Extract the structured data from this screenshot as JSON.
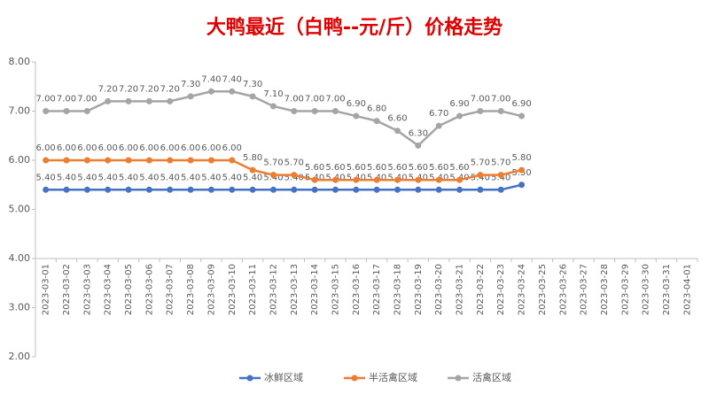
{
  "chart_data": {
    "type": "line",
    "title": "大鸭最近（白鸭--元/斤）价格走势",
    "categories": [
      "2023-03-01",
      "2023-03-02",
      "2023-03-03",
      "2023-03-04",
      "2023-03-05",
      "2023-03-06",
      "2023-03-07",
      "2023-03-08",
      "2023-03-09",
      "2023-03-10",
      "2023-03-11",
      "2023-03-12",
      "2023-03-13",
      "2023-03-14",
      "2023-03-15",
      "2023-03-16",
      "2023-03-17",
      "2023-03-18",
      "2023-03-19",
      "2023-03-20",
      "2023-03-21",
      "2023-03-22",
      "2023-03-23",
      "2023-03-24",
      "2023-03-25",
      "2023-03-26",
      "2023-03-27",
      "2023-03-28",
      "2023-03-29",
      "2023-03-30",
      "2023-03-31",
      "2023-04-01"
    ],
    "series": [
      {
        "name": "冰鲜区域",
        "color": "#4472c4",
        "values": [
          5.4,
          5.4,
          5.4,
          5.4,
          5.4,
          5.4,
          5.4,
          5.4,
          5.4,
          5.4,
          5.4,
          5.4,
          5.4,
          5.4,
          5.4,
          5.4,
          5.4,
          5.4,
          5.4,
          5.4,
          5.4,
          5.4,
          5.4,
          5.5,
          null,
          null,
          null,
          null,
          null,
          null,
          null,
          null
        ],
        "value_labels": [
          "5.40",
          "5.40",
          "5.40",
          "5.40",
          "5.40",
          "5.40",
          "5.40",
          "5.40",
          "5.40",
          "5.40",
          "5.40",
          "5.40",
          "5.40",
          "5.40",
          "5.40",
          "5.40",
          "5.40",
          "5.40",
          "5.40",
          "5.40",
          "5.40",
          "5.40",
          "5.40",
          "5.50",
          null,
          null,
          null,
          null,
          null,
          null,
          null,
          null
        ]
      },
      {
        "name": "半活禽区域",
        "color": "#ed7d31",
        "values": [
          6,
          6,
          6,
          6,
          6,
          6,
          6,
          6,
          6,
          6,
          5.8,
          5.7,
          5.7,
          5.6,
          5.6,
          5.6,
          5.6,
          5.6,
          5.6,
          5.6,
          5.6,
          5.7,
          5.7,
          5.8,
          null,
          null,
          null,
          null,
          null,
          null,
          null,
          null
        ],
        "value_labels": [
          "6.00",
          "6.00",
          "6.00",
          "6.00",
          "6.00",
          "6.00",
          "6.00",
          "6.00",
          "6.00",
          "6.00",
          "5.80",
          "5.70",
          "5.70",
          "5.60",
          "5.60",
          "5.60",
          "5.60",
          "5.60",
          "5.60",
          "5.60",
          "5.60",
          "5.70",
          "5.70",
          "5.80",
          null,
          null,
          null,
          null,
          null,
          null,
          null,
          null
        ]
      },
      {
        "name": "活禽区域",
        "color": "#a5a5a5",
        "values": [
          7,
          7,
          7,
          7.2,
          7.2,
          7.2,
          7.2,
          7.3,
          7.4,
          7.4,
          7.3,
          7.1,
          7,
          7,
          7,
          6.9,
          6.8,
          6.6,
          6.3,
          6.7,
          6.9,
          7,
          7,
          6.9,
          null,
          null,
          null,
          null,
          null,
          null,
          null,
          null
        ],
        "value_labels": [
          "7.00",
          "7.00",
          "7.00",
          "7.20",
          "7.20",
          "7.20",
          "7.20",
          "7.30",
          "7.40",
          "7.40",
          "7.30",
          "7.10",
          "7.00",
          "7.00",
          "7.00",
          "6.90",
          "6.80",
          "6.60",
          "6.30",
          "6.70",
          "6.90",
          "7.00",
          "7.00",
          "6.90",
          null,
          null,
          null,
          null,
          null,
          null,
          null,
          null
        ]
      }
    ],
    "ylim": [
      2,
      8
    ],
    "yticks": [
      {
        "value": 2,
        "label": "2.00"
      },
      {
        "value": 3,
        "label": "3.00"
      },
      {
        "value": 4,
        "label": "4.00"
      },
      {
        "value": 5,
        "label": "5.00"
      },
      {
        "value": 6,
        "label": "6.00"
      },
      {
        "value": 7,
        "label": "7.00"
      },
      {
        "value": 8,
        "label": "8.00"
      }
    ],
    "x_axis_at": 4,
    "grid": false,
    "legend": "bottom"
  }
}
